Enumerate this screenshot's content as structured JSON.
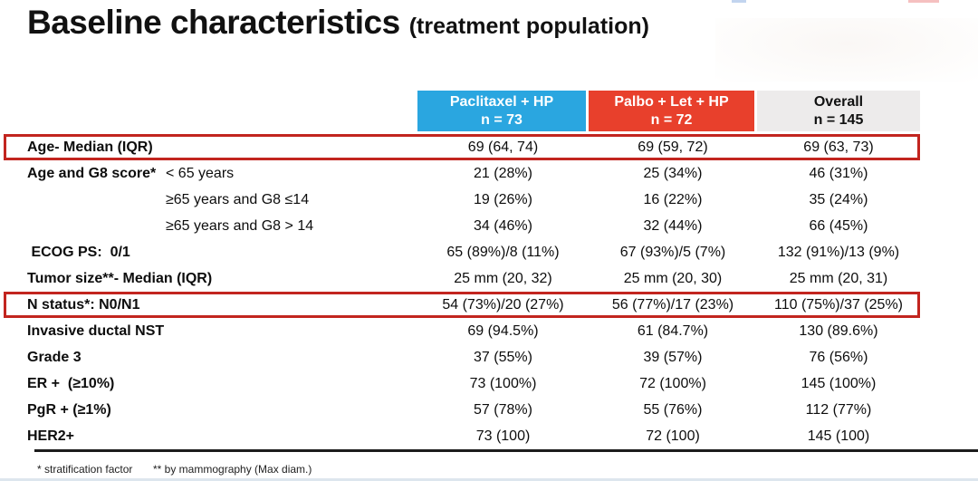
{
  "title": {
    "main": "Baseline characteristics",
    "suffix": "(treatment population)"
  },
  "table": {
    "columns": [
      {
        "label": "Paclitaxel + HP",
        "sub": "n = 73",
        "bg": "#2aa6e0",
        "fg": "#ffffff"
      },
      {
        "label": "Palbo + Let + HP",
        "sub": "n = 72",
        "bg": "#e8402c",
        "fg": "#ffffff"
      },
      {
        "label": "Overall",
        "sub": "n = 145",
        "bg": "#edebeb",
        "fg": "#111111"
      }
    ],
    "rows": [
      {
        "label": "Age- Median (IQR)",
        "sublabel": "",
        "values": [
          "69 (64, 74)",
          "69 (59, 72)",
          "69 (63, 73)"
        ],
        "highlight": true
      },
      {
        "label": "Age and G8 score*",
        "sublabel": "< 65 years",
        "values": [
          "21 (28%)",
          "25 (34%)",
          "46 (31%)"
        ],
        "highlight": false
      },
      {
        "label": "",
        "sublabel": "≥65 years and G8 ≤14",
        "values": [
          "19 (26%)",
          "16 (22%)",
          "35 (24%)"
        ],
        "highlight": false
      },
      {
        "label": "",
        "sublabel": "≥65 years and G8 > 14",
        "values": [
          "34 (46%)",
          "32 (44%)",
          "66 (45%)"
        ],
        "highlight": false
      },
      {
        "label": " ECOG PS:  0/1",
        "sublabel": "",
        "values": [
          "65 (89%)/8 (11%)",
          "67 (93%)/5 (7%)",
          "132 (91%)/13 (9%)"
        ],
        "highlight": false
      },
      {
        "label": "Tumor size**- Median (IQR)",
        "sublabel": "",
        "values": [
          "25 mm (20, 32)",
          "25 mm (20, 30)",
          "25 mm (20, 31)"
        ],
        "highlight": false
      },
      {
        "label": "N status*: N0/N1",
        "sublabel": "",
        "values": [
          "54 (73%)/20 (27%)",
          "56 (77%)/17 (23%)",
          "110 (75%)/37 (25%)"
        ],
        "highlight": true
      },
      {
        "label": "Invasive ductal NST",
        "sublabel": "",
        "values": [
          "69 (94.5%)",
          "61 (84.7%)",
          "130 (89.6%)"
        ],
        "highlight": false
      },
      {
        "label": "Grade 3",
        "sublabel": "",
        "values": [
          "37 (55%)",
          "39 (57%)",
          "76 (56%)"
        ],
        "highlight": false
      },
      {
        "label": "ER +  (≥10%)",
        "sublabel": "",
        "values": [
          "73 (100%)",
          "72 (100%)",
          "145 (100%)"
        ],
        "highlight": false
      },
      {
        "label": "PgR + (≥1%)",
        "sublabel": "",
        "values": [
          "57 (78%)",
          "55 (76%)",
          "112 (77%)"
        ],
        "highlight": false
      },
      {
        "label": "HER2+",
        "sublabel": "",
        "values": [
          "73 (100)",
          "72 (100)",
          "145 (100)"
        ],
        "highlight": false
      }
    ]
  },
  "footnotes": {
    "f1": "* stratification factor",
    "f2": "** by mammography (Max diam.)"
  },
  "colors": {
    "highlight_border": "#c2251f",
    "header_blue": "#2aa6e0",
    "header_red": "#e8402c",
    "header_gray": "#edebeb",
    "bottom_rule": "#1c1c1c"
  }
}
